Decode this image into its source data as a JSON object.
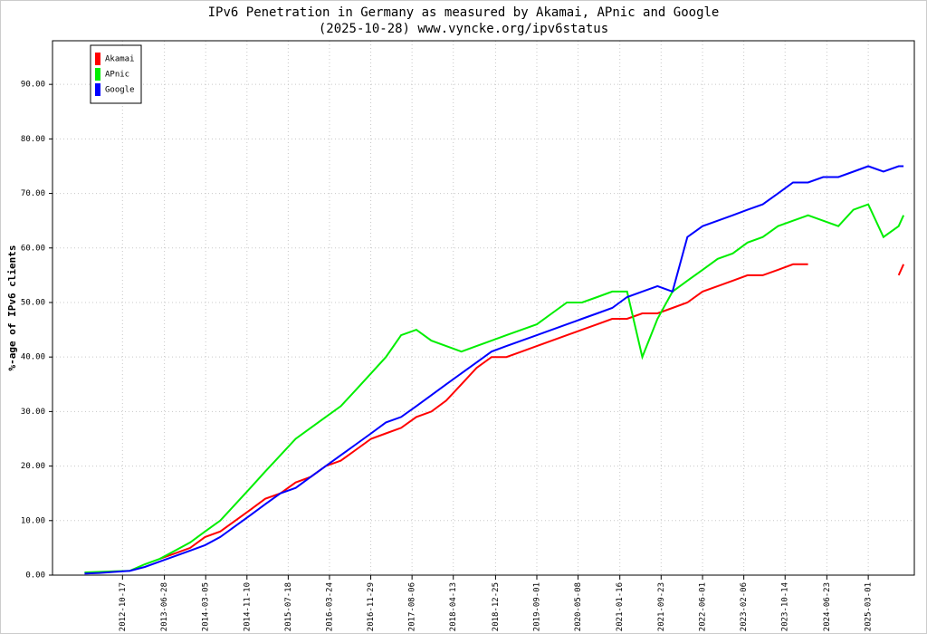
{
  "chart_data": {
    "type": "line",
    "title": "IPv6 Penetration in Germany as measured by Akamai, APnic and Google",
    "subtitle": "(2025-10-28) www.vyncke.org/ipv6status",
    "y_label": "%-age of IPv6 clients",
    "x": [
      "2012-03-01",
      "2012-06-01",
      "2012-09-01",
      "2012-12-01",
      "2013-03-01",
      "2013-06-01",
      "2013-09-01",
      "2013-12-01",
      "2014-03-01",
      "2014-06-01",
      "2014-09-01",
      "2014-12-01",
      "2015-03-01",
      "2015-06-01",
      "2015-09-01",
      "2015-12-01",
      "2016-03-01",
      "2016-06-01",
      "2016-09-01",
      "2016-12-01",
      "2017-03-01",
      "2017-06-01",
      "2017-09-01",
      "2017-12-01",
      "2018-03-01",
      "2018-06-01",
      "2018-09-01",
      "2018-12-01",
      "2019-03-01",
      "2019-06-01",
      "2019-09-01",
      "2019-12-01",
      "2020-03-01",
      "2020-06-01",
      "2020-09-01",
      "2020-12-01",
      "2021-03-01",
      "2021-06-01",
      "2021-09-01",
      "2021-12-01",
      "2022-03-01",
      "2022-06-01",
      "2022-09-01",
      "2022-12-01",
      "2023-03-01",
      "2023-06-01",
      "2023-09-01",
      "2023-12-01",
      "2024-03-01",
      "2024-06-01",
      "2024-09-01",
      "2024-12-01",
      "2025-03-01",
      "2025-06-01",
      "2025-09-01",
      "2025-10-01"
    ],
    "series": [
      {
        "name": "Akamai",
        "color": "#ff0000",
        "values": [
          null,
          null,
          null,
          null,
          null,
          3,
          4,
          5,
          7,
          8,
          10,
          12,
          14,
          15,
          17,
          18,
          20,
          21,
          23,
          25,
          26,
          27,
          29,
          30,
          32,
          35,
          38,
          40,
          40,
          41,
          42,
          43,
          44,
          45,
          46,
          47,
          47,
          48,
          48,
          49,
          50,
          52,
          53,
          54,
          55,
          55,
          56,
          57,
          57,
          null,
          null,
          null,
          null,
          null,
          55,
          57
        ]
      },
      {
        "name": "APnic",
        "color": "#00ee00",
        "values": [
          0.5,
          0.6,
          0.7,
          0.8,
          2,
          3,
          4.5,
          6,
          8,
          10,
          13,
          16,
          19,
          22,
          25,
          27,
          29,
          31,
          34,
          37,
          40,
          44,
          45,
          43,
          42,
          41,
          42,
          43,
          44,
          45,
          46,
          48,
          50,
          50,
          51,
          52,
          52,
          40,
          47,
          52,
          54,
          56,
          58,
          59,
          61,
          62,
          64,
          65,
          66,
          65,
          64,
          67,
          68,
          62,
          64,
          66
        ]
      },
      {
        "name": "Google",
        "color": "#0000ff",
        "values": [
          0.3,
          0.4,
          0.6,
          0.8,
          1.5,
          2.5,
          3.5,
          4.5,
          5.5,
          7,
          9,
          11,
          13,
          15,
          16,
          18,
          20,
          22,
          24,
          26,
          28,
          29,
          31,
          33,
          35,
          37,
          39,
          41,
          42,
          43,
          44,
          45,
          46,
          47,
          48,
          49,
          51,
          52,
          53,
          52,
          62,
          64,
          65,
          66,
          67,
          68,
          70,
          72,
          72,
          73,
          73,
          74,
          75,
          74,
          75,
          75
        ]
      }
    ],
    "xlim": [
      "2011-08-20",
      "2025-12-05"
    ],
    "xticks": [
      "2012-10-17",
      "2013-06-28",
      "2014-03-05",
      "2014-11-10",
      "2015-07-18",
      "2016-03-24",
      "2016-11-29",
      "2017-08-06",
      "2018-04-13",
      "2018-12-25",
      "2019-09-01",
      "2020-05-08",
      "2021-01-16",
      "2021-09-23",
      "2022-06-01",
      "2023-02-06",
      "2023-10-14",
      "2024-06-23",
      "2025-03-01"
    ],
    "ylim": [
      0,
      98
    ],
    "yticks": [
      {
        "value": 0,
        "label": "0.00"
      },
      {
        "value": 10,
        "label": "10.00"
      },
      {
        "value": 20,
        "label": "20.00"
      },
      {
        "value": 30,
        "label": "30.00"
      },
      {
        "value": 40,
        "label": "40.00"
      },
      {
        "value": 50,
        "label": "50.00"
      },
      {
        "value": 60,
        "label": "60.00"
      },
      {
        "value": 70,
        "label": "70.00"
      },
      {
        "value": 80,
        "label": "80.00"
      },
      {
        "value": 90,
        "label": "90.00"
      }
    ],
    "grid": true,
    "legend": "upper-left"
  }
}
